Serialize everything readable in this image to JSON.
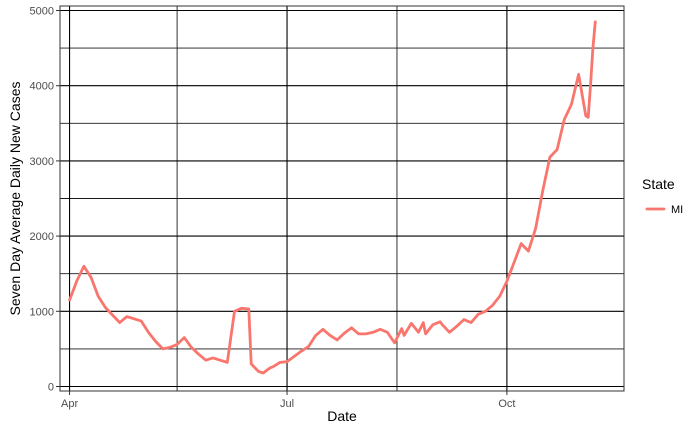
{
  "chart_data": {
    "type": "line",
    "title": "",
    "xlabel": "Date",
    "ylabel": "Seven Day Average Daily New Cases",
    "x_tick_labels": [
      "Apr",
      "Jul",
      "Oct"
    ],
    "x_tick_dates": [
      "2020-04-01",
      "2020-07-01",
      "2020-10-01"
    ],
    "x_minor_dates": [
      "2020-05-16",
      "2020-08-16"
    ],
    "y_ticks": [
      0,
      1000,
      2000,
      3000,
      4000,
      5000
    ],
    "y_tick_labels": [
      "0",
      "1000",
      "2000",
      "3000",
      "4000",
      "5000"
    ],
    "y_minor_ticks": [
      500,
      1500,
      2500,
      3500,
      4500
    ],
    "xlim": [
      "2020-03-28",
      "2020-11-19"
    ],
    "ylim": [
      -60,
      5060
    ],
    "grid": true,
    "legend": {
      "title": "State",
      "position": "right"
    },
    "line_color": "#F8766D",
    "series": [
      {
        "name": "MI",
        "x": [
          "2020-04-01",
          "2020-04-04",
          "2020-04-07",
          "2020-04-10",
          "2020-04-13",
          "2020-04-16",
          "2020-04-19",
          "2020-04-22",
          "2020-04-25",
          "2020-04-28",
          "2020-05-01",
          "2020-05-04",
          "2020-05-07",
          "2020-05-10",
          "2020-05-13",
          "2020-05-16",
          "2020-05-19",
          "2020-05-22",
          "2020-05-25",
          "2020-05-28",
          "2020-05-31",
          "2020-06-03",
          "2020-06-06",
          "2020-06-09",
          "2020-06-12",
          "2020-06-15",
          "2020-06-16",
          "2020-06-19",
          "2020-06-21",
          "2020-06-24",
          "2020-06-25",
          "2020-06-28",
          "2020-07-01",
          "2020-07-04",
          "2020-07-07",
          "2020-07-10",
          "2020-07-13",
          "2020-07-16",
          "2020-07-19",
          "2020-07-22",
          "2020-07-25",
          "2020-07-28",
          "2020-07-31",
          "2020-08-03",
          "2020-08-06",
          "2020-08-09",
          "2020-08-12",
          "2020-08-15",
          "2020-08-18",
          "2020-08-19",
          "2020-08-22",
          "2020-08-25",
          "2020-08-27",
          "2020-08-28",
          "2020-08-31",
          "2020-09-03",
          "2020-09-04",
          "2020-09-07",
          "2020-09-10",
          "2020-09-13",
          "2020-09-16",
          "2020-09-19",
          "2020-09-22",
          "2020-09-25",
          "2020-09-28",
          "2020-10-01",
          "2020-10-04",
          "2020-10-07",
          "2020-10-10",
          "2020-10-13",
          "2020-10-16",
          "2020-10-19",
          "2020-10-22",
          "2020-10-25",
          "2020-10-28",
          "2020-10-31",
          "2020-11-03",
          "2020-11-04",
          "2020-11-05",
          "2020-11-06",
          "2020-11-07"
        ],
        "y": [
          1150,
          1400,
          1600,
          1450,
          1200,
          1050,
          950,
          850,
          930,
          900,
          870,
          720,
          600,
          500,
          520,
          560,
          650,
          520,
          430,
          350,
          380,
          350,
          320,
          1000,
          1040,
          1030,
          300,
          200,
          180,
          250,
          260,
          320,
          330,
          400,
          470,
          530,
          680,
          760,
          680,
          620,
          710,
          780,
          700,
          700,
          720,
          760,
          720,
          580,
          770,
          680,
          840,
          720,
          850,
          700,
          820,
          860,
          820,
          720,
          800,
          890,
          850,
          960,
          1000,
          1080,
          1200,
          1400,
          1650,
          1900,
          1800,
          2100,
          2600,
          3050,
          3150,
          3550,
          3750,
          4150,
          3600,
          3580,
          4000,
          4500,
          4850
        ]
      }
    ]
  }
}
